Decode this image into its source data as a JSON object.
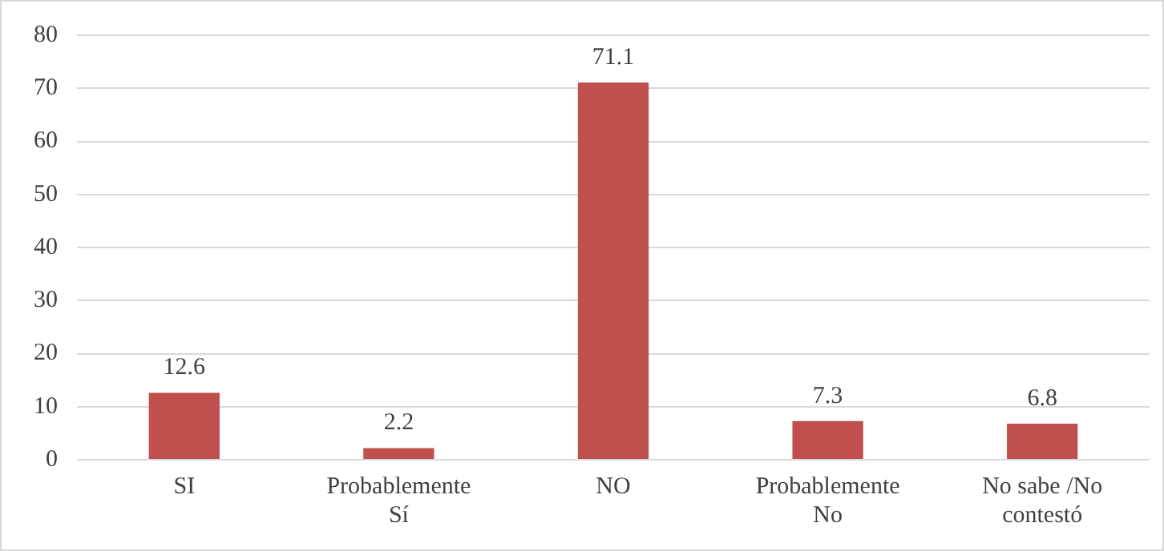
{
  "chart_data": {
    "type": "bar",
    "categories": [
      "SI",
      "Probablemente Sí",
      "NO",
      "Probablemente No",
      "No sabe /No contestó"
    ],
    "values": [
      12.6,
      2.2,
      71.1,
      7.3,
      6.8
    ],
    "color": "#c0504d",
    "ylim": [
      0,
      80
    ],
    "yticks": [
      0,
      10,
      20,
      30,
      40,
      50,
      60,
      70,
      80
    ],
    "grid": "y",
    "data_labels": true
  }
}
